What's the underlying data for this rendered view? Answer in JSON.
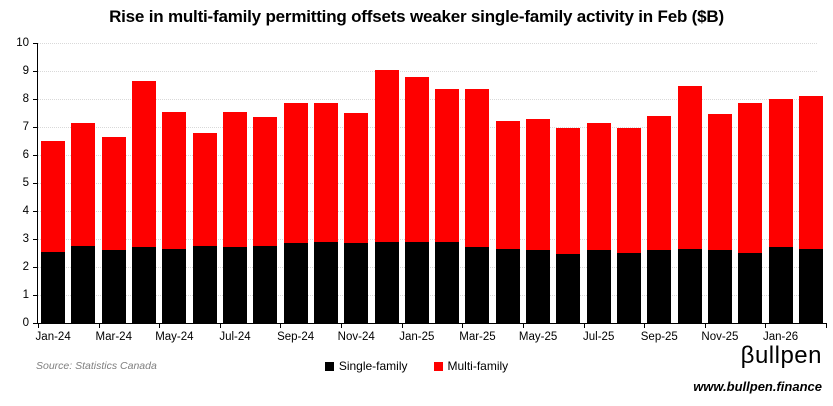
{
  "source_note": "Source: Statistics Canada",
  "brand": {
    "logo_text": "βullpen",
    "website": "www.bullpen.finance"
  },
  "chart_data": {
    "type": "bar",
    "stacked": true,
    "title": "Rise in multi-family permitting offsets weaker single-family activity in Feb ($B)",
    "categories": [
      "Jan-24",
      "Feb-24",
      "Mar-24",
      "Apr-24",
      "May-24",
      "Jun-24",
      "Jul-24",
      "Aug-24",
      "Sep-24",
      "Oct-24",
      "Nov-24",
      "Dec-24",
      "Jan-25",
      "Feb-25",
      "Mar-25",
      "Apr-25",
      "May-25",
      "Jun-25",
      "Jul-25",
      "Aug-25",
      "Sep-25",
      "Oct-25",
      "Nov-25",
      "Dec-25",
      "Jan-26",
      "Feb-26"
    ],
    "x_tick_labels": [
      "Jan-24",
      "Mar-24",
      "May-24",
      "Jul-24",
      "Sep-24",
      "Nov-24",
      "Jan-25",
      "Mar-25",
      "May-25",
      "Jul-25",
      "Sep-25",
      "Nov-25",
      "Jan-26"
    ],
    "series": [
      {
        "name": "Single-family",
        "color": "#000000",
        "values": [
          2.55,
          2.75,
          2.6,
          2.7,
          2.65,
          2.75,
          2.7,
          2.75,
          2.85,
          2.9,
          2.85,
          2.9,
          2.9,
          2.9,
          2.7,
          2.65,
          2.6,
          2.45,
          2.6,
          2.5,
          2.6,
          2.65,
          2.6,
          2.5,
          2.7,
          2.65
        ]
      },
      {
        "name": "Multi-family",
        "color": "#fe0000",
        "values": [
          3.95,
          4.4,
          4.05,
          5.95,
          4.9,
          4.05,
          4.85,
          4.6,
          5.0,
          4.95,
          4.65,
          6.15,
          5.9,
          5.45,
          5.65,
          4.55,
          4.7,
          4.5,
          4.55,
          4.45,
          4.8,
          5.8,
          4.85,
          5.35,
          5.3,
          5.45
        ]
      }
    ],
    "totals": [
      6.5,
      7.15,
      6.65,
      8.65,
      7.55,
      6.8,
      7.55,
      7.35,
      7.85,
      7.85,
      7.5,
      9.05,
      8.8,
      8.35,
      8.35,
      7.2,
      7.3,
      6.95,
      7.15,
      6.95,
      7.4,
      8.45,
      7.45,
      7.85,
      8.0,
      8.1
    ],
    "ylim": [
      0,
      10
    ],
    "ytick_step": 1,
    "grid": "horizontal-dotted",
    "gridline_color": "#d9d9d9",
    "axis_color": "#000000",
    "legend_position": "bottom-center"
  }
}
